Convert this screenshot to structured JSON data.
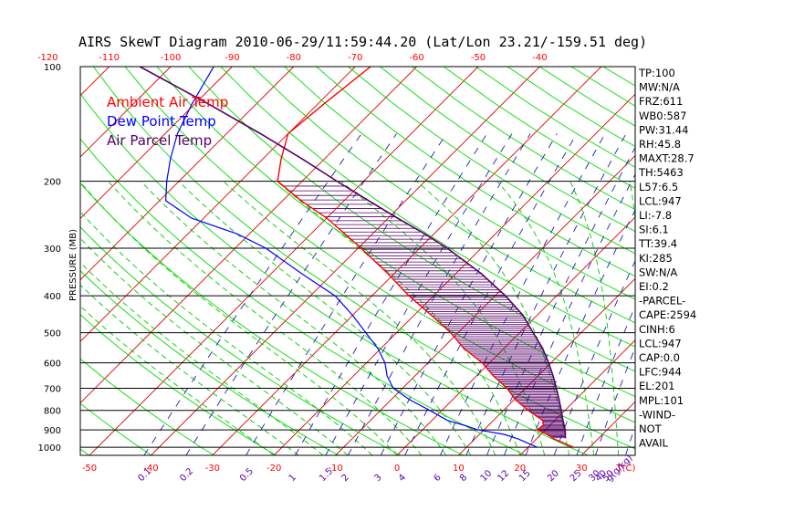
{
  "title": "AIRS SkewT Diagram 2010-06-29/11:59:44.20 (Lat/Lon 23.21/-159.51 deg)",
  "chart_data": {
    "type": "line",
    "ylabel": "PRESSURE (MB)",
    "xlabel": "T(C)",
    "mixing_ratio_label": "g(g/kg)",
    "pressure_ticks": [
      100,
      200,
      300,
      400,
      500,
      600,
      700,
      800,
      900,
      1000
    ],
    "temp_ticks_bottom": [
      -50,
      -40,
      -30,
      -20,
      -10,
      0,
      10,
      20,
      30
    ],
    "temp_ticks_top": [
      -120,
      -110,
      -100,
      -90,
      -80,
      -70,
      -60,
      -50,
      -40
    ],
    "mixing_ratio_labels": [
      "0.1",
      "0.2",
      "0.5",
      "1",
      "1.5",
      "2",
      "3",
      "4",
      "6",
      "8",
      "10",
      "12",
      "15",
      "20",
      "25",
      "30",
      "40",
      "50"
    ],
    "legend": [
      "Ambient Air Temp",
      "Dew Point Temp",
      "Air Parcel Temp"
    ],
    "colors": {
      "ambient": "#ff0000",
      "dewpoint": "#0000ff",
      "parcel": "#550066",
      "isotherm": "#dd0000",
      "dry_adiabat": "#00dd00",
      "moist_adiabat": "#00cc00",
      "mixing_ratio": "#2222aa",
      "isobar": "#000000",
      "tick_top": "#ff0000",
      "tick_bottom": "#ff0000",
      "mr_label": "#5500aa"
    },
    "series": [
      {
        "name": "Ambient Air Temp",
        "points": [
          [
            1000,
            27.4
          ],
          [
            950,
            22.8
          ],
          [
            925,
            21.0
          ],
          [
            900,
            18.6
          ],
          [
            875,
            18.9
          ],
          [
            850,
            18.0
          ],
          [
            800,
            14.0
          ],
          [
            750,
            10.2
          ],
          [
            700,
            7.0
          ],
          [
            650,
            2.8
          ],
          [
            600,
            -1.2
          ],
          [
            550,
            -6.5
          ],
          [
            500,
            -11.2
          ],
          [
            450,
            -17.2
          ],
          [
            400,
            -24.0
          ],
          [
            350,
            -31.0
          ],
          [
            300,
            -39.5
          ],
          [
            275,
            -44.5
          ],
          [
            250,
            -50.0
          ],
          [
            225,
            -57.0
          ],
          [
            200,
            -64.0
          ],
          [
            175,
            -67.0
          ],
          [
            150,
            -70.0
          ],
          [
            125,
            -69.0
          ],
          [
            100,
            -67.5
          ]
        ]
      },
      {
        "name": "Dew Point Temp",
        "points": [
          [
            1000,
            21.5
          ],
          [
            950,
            17.0
          ],
          [
            925,
            14.0
          ],
          [
            900,
            9.0
          ],
          [
            875,
            6.0
          ],
          [
            850,
            2.5
          ],
          [
            800,
            -2.0
          ],
          [
            750,
            -7.0
          ],
          [
            700,
            -11.5
          ],
          [
            650,
            -14.5
          ],
          [
            600,
            -17.0
          ],
          [
            550,
            -20.5
          ],
          [
            500,
            -25.0
          ],
          [
            450,
            -30.0
          ],
          [
            400,
            -36.0
          ],
          [
            350,
            -45.0
          ],
          [
            300,
            -55.0
          ],
          [
            275,
            -62.0
          ],
          [
            250,
            -72.0
          ],
          [
            225,
            -79.0
          ],
          [
            200,
            -82.0
          ],
          [
            175,
            -85.0
          ],
          [
            150,
            -88.0
          ],
          [
            125,
            -90.5
          ],
          [
            100,
            -93.0
          ]
        ]
      },
      {
        "name": "Air Parcel Temp",
        "points": [
          [
            947,
            24.6
          ],
          [
            900,
            23.2
          ],
          [
            850,
            21.3
          ],
          [
            800,
            19.4
          ],
          [
            750,
            17.3
          ],
          [
            700,
            15.0
          ],
          [
            650,
            12.5
          ],
          [
            600,
            9.6
          ],
          [
            550,
            6.3
          ],
          [
            500,
            2.2
          ],
          [
            450,
            -2.3
          ],
          [
            400,
            -8.3
          ],
          [
            350,
            -15.8
          ],
          [
            300,
            -25.5
          ],
          [
            275,
            -31.5
          ],
          [
            250,
            -38.5
          ],
          [
            225,
            -46.0
          ],
          [
            201,
            -54.0
          ],
          [
            175,
            -63.5
          ],
          [
            150,
            -74.5
          ],
          [
            125,
            -88.0
          ],
          [
            100,
            -105.0
          ]
        ]
      }
    ],
    "stats": [
      "TP:100",
      "MW:N/A",
      "FRZ:611",
      "WB0:587",
      "PW:31.44",
      "RH:45.8",
      "MAXT:28.7",
      "TH:5463",
      "L57:6.5",
      "LCL:947",
      "LI:-7.8",
      "SI:6.1",
      "TT:39.4",
      "KI:285",
      "SW:N/A",
      "EI:0.2",
      "-PARCEL-",
      "CAPE:2594",
      "CINH:6",
      "LCL:947",
      "CAP:0.0",
      "LFC:944",
      "EL:201",
      "MPL:101",
      "-WIND-",
      "NOT",
      "AVAIL"
    ]
  }
}
